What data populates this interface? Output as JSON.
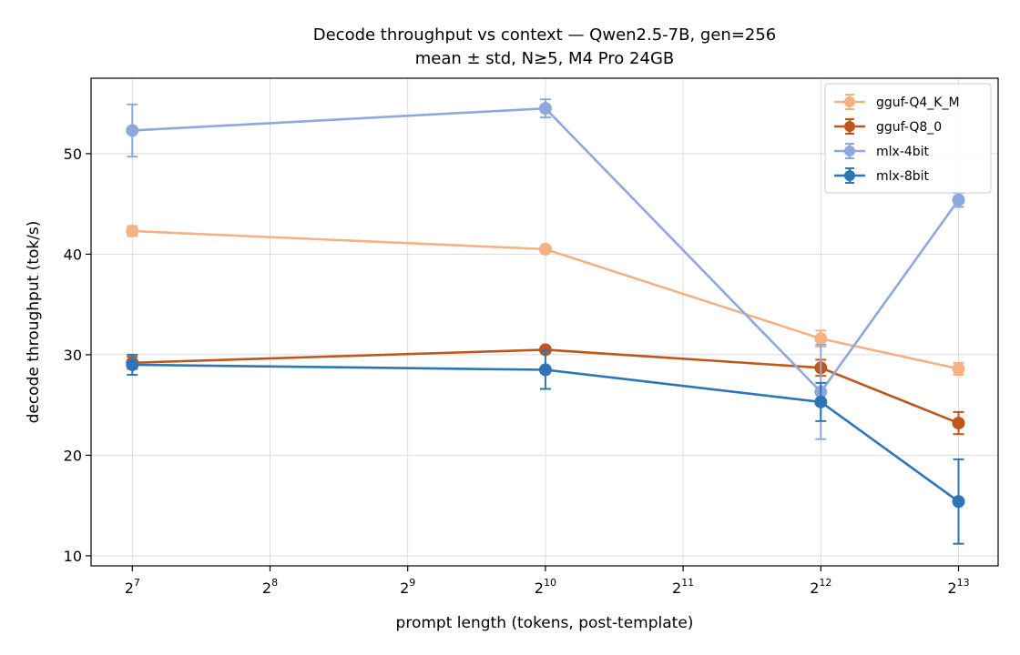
{
  "chart_data": {
    "type": "line",
    "title": "Decode throughput vs context — Qwen2.5-7B, gen=256",
    "subtitle": "mean ± std, N≥5, M4 Pro 24GB",
    "xlabel": "prompt length (tokens, post-template)",
    "ylabel": "decode throughput (tok/s)",
    "x_scale": "log2",
    "x_ticks": [
      {
        "base": "2",
        "exp": "7",
        "value": 128
      },
      {
        "base": "2",
        "exp": "8",
        "value": 256
      },
      {
        "base": "2",
        "exp": "9",
        "value": 512
      },
      {
        "base": "2",
        "exp": "10",
        "value": 1024
      },
      {
        "base": "2",
        "exp": "11",
        "value": 2048
      },
      {
        "base": "2",
        "exp": "12",
        "value": 4096
      },
      {
        "base": "2",
        "exp": "13",
        "value": 8192
      }
    ],
    "x": [
      128,
      1024,
      4096,
      8192
    ],
    "xlim": [
      104,
      10000
    ],
    "y_ticks": [
      10,
      20,
      30,
      40,
      50
    ],
    "ylim": [
      9,
      57.5
    ],
    "grid": true,
    "legend_position": "top-right",
    "series": [
      {
        "name": "gguf-Q4_K_M",
        "color": "#f4b183",
        "values": [
          42.3,
          40.5,
          31.6,
          28.6
        ],
        "errors": [
          0.5,
          0.3,
          0.8,
          0.6
        ]
      },
      {
        "name": "gguf-Q8_0",
        "color": "#c0561b",
        "values": [
          29.2,
          30.5,
          28.7,
          23.2
        ],
        "errors": [
          0.6,
          0.3,
          0.8,
          1.1
        ]
      },
      {
        "name": "mlx-4bit",
        "color": "#8fa8dc",
        "values": [
          52.3,
          54.5,
          26.3,
          45.4
        ],
        "errors": [
          2.6,
          0.9,
          4.7,
          0.7
        ]
      },
      {
        "name": "mlx-8bit",
        "color": "#2e75b6",
        "values": [
          29.0,
          28.5,
          25.3,
          15.4
        ],
        "errors": [
          1.0,
          1.9,
          1.9,
          4.2
        ]
      }
    ]
  }
}
